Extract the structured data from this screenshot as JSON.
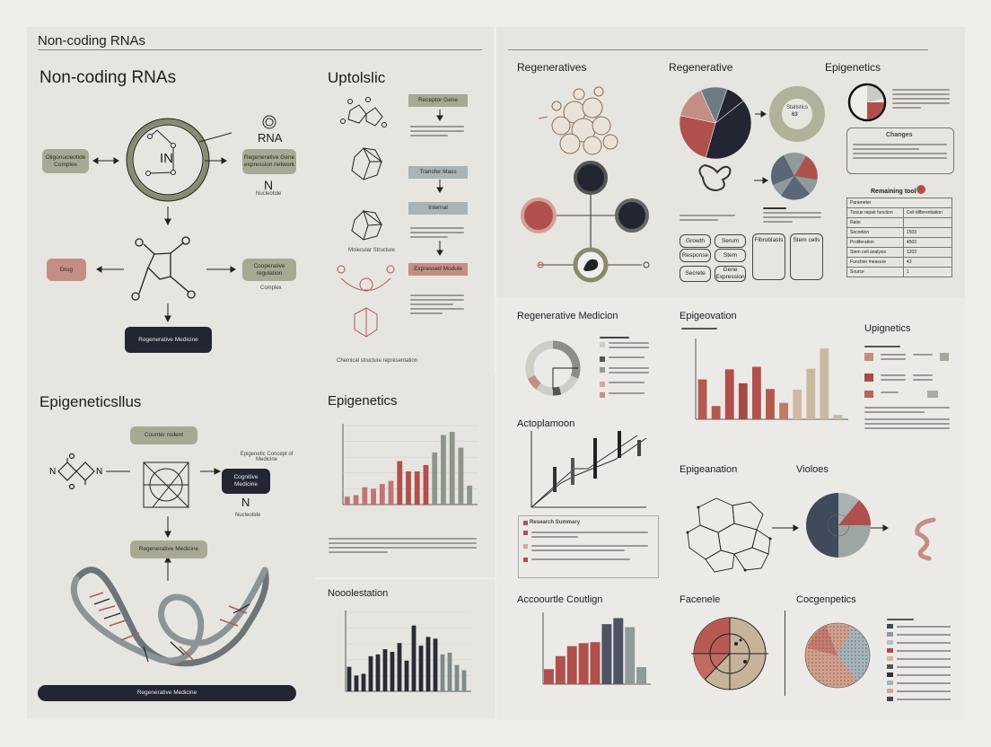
{
  "panel_a": {
    "header": "Non-coding RNAs",
    "title": "Non-coding RNAs",
    "circle_label": "IN",
    "left_box": "Oligonucleotide Complex",
    "rna_label": "RNA",
    "right_box": "Regenerative Gene expression network",
    "n_label": "N",
    "n_sub": "Nucleotide",
    "drug_box": "Drug",
    "right_box_2": "Cooperative regulation",
    "right_box_2_sub": "Complex",
    "bottom_box": "Regenerative Medicine"
  },
  "panel_uptolslic": {
    "title": "Uptolslic",
    "flow": [
      "Receptor Gene",
      "Transfer Mass",
      "Internal",
      "Expressed Module"
    ],
    "molecule_caption": "Molecular Structure",
    "bottom_caption": "Chemical structure representation"
  },
  "panel_regen": {
    "title": "Regeneratives",
    "title_2": "Regenerative",
    "donut_label": "Statistics",
    "donut_value": "63",
    "title_3": "Epigenetics",
    "callout_title": "Changes",
    "table_title": "Remaining tool",
    "table_rows": [
      [
        "Parameter",
        ""
      ],
      [
        "Tissue repair function",
        "Cell differentiation"
      ],
      [
        "Ratio",
        ""
      ],
      [
        "Secretion",
        "1503"
      ],
      [
        "Proliferation",
        "4503"
      ],
      [
        "Stem cell analysis",
        "1203"
      ],
      [
        "Function measure",
        "43"
      ],
      [
        "Source",
        "1"
      ]
    ],
    "grid_buttons": [
      "Growth",
      "Serum",
      "Response",
      "Stem",
      "Secrete",
      "Gene Expression",
      "Fibroblasts",
      "Stem cells"
    ]
  },
  "panel_epi_left": {
    "title": "Epigeneticsllus",
    "top_box": "Counter rodent",
    "side_text": "Epigenetic Concept of Medicine",
    "dark_box": "Cognitive Medicine",
    "n_label": "N",
    "n_sub": "Nucleotide",
    "mid_box": "Regenerative Medicine",
    "bottom_bar": "Regenerative Medicine"
  },
  "lower_right": {
    "regen_title": "Regenerative Medicion",
    "acto_title": "Actoplamoon",
    "acco_title": "Accoourtle Coutlign",
    "epigeo_title": "Epigeovation",
    "upig_title": "Upignetics",
    "epigen_title": "Epigeanation",
    "vio_title": "Violoes",
    "fac_title": "Facenele",
    "cog_title": "Cocgenpetics",
    "legend_title": "Research Summary"
  },
  "colors": {
    "dark": "#232533",
    "red": "#b0504c",
    "salmon": "#c48e84",
    "olive": "#a9a993",
    "slate": "#5b6778",
    "sage": "#8f9a8c",
    "beige": "#c8b9a0"
  },
  "chart_data": [
    {
      "type": "bar",
      "title": "Epigenetics",
      "values": [
        10,
        12,
        22,
        20,
        26,
        30,
        55,
        42,
        42,
        50,
        66,
        88,
        92,
        72,
        24
      ],
      "ylim": [
        0,
        100
      ],
      "grid": true
    },
    {
      "type": "bar",
      "title": "Nooolestation",
      "values": [
        28,
        18,
        20,
        40,
        42,
        48,
        45,
        55,
        35,
        75,
        52,
        62,
        60,
        42,
        44,
        30,
        24
      ],
      "ylim": [
        0,
        90
      ],
      "grid": true
    },
    {
      "type": "bar",
      "title": "Epigeovation",
      "values": [
        63,
        21,
        79,
        57,
        83,
        48,
        26,
        47,
        80,
        112,
        7
      ],
      "ylim": [
        0,
        125
      ],
      "grid": false
    },
    {
      "type": "bar",
      "title": "Accoourtle Coutlign",
      "values": [
        15,
        28,
        38,
        41,
        42,
        60,
        66,
        57,
        17
      ],
      "ylim": [
        0,
        70
      ],
      "grid": false
    },
    {
      "type": "pie",
      "title": "Regenerative",
      "values": [
        40,
        24,
        15,
        12,
        9
      ]
    }
  ]
}
